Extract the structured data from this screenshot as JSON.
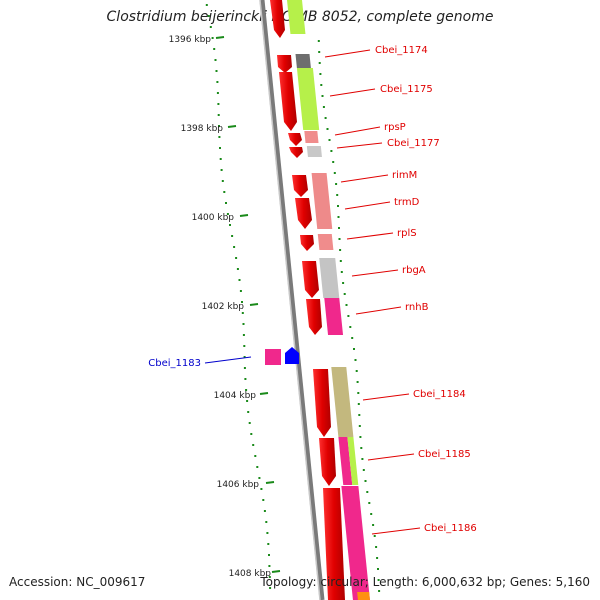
{
  "title": "Clostridium beijerinckii NCIMB 8052, complete genome",
  "footer": {
    "accession": "Accession: NC_009617",
    "topology": "Topology: circular; Length: 6,000,632 bp; Genes: 5,160"
  },
  "ticks": [
    "1396 kbp",
    "1398 kbp",
    "1400 kbp",
    "1402 kbp",
    "1404 kbp",
    "1406 kbp",
    "1408 kbp"
  ],
  "gene_labels": [
    {
      "text": "Cbei_1174",
      "color": "#e00000"
    },
    {
      "text": "Cbei_1175",
      "color": "#e00000"
    },
    {
      "text": "rpsP",
      "color": "#e00000"
    },
    {
      "text": "Cbei_1177",
      "color": "#e00000"
    },
    {
      "text": "rimM",
      "color": "#e00000"
    },
    {
      "text": "trmD",
      "color": "#e00000"
    },
    {
      "text": "rplS",
      "color": "#e00000"
    },
    {
      "text": "rbgA",
      "color": "#e00000"
    },
    {
      "text": "rnhB",
      "color": "#e00000"
    },
    {
      "text": "Cbei_1183",
      "color": "#0000cc"
    },
    {
      "text": "Cbei_1184",
      "color": "#e00000"
    },
    {
      "text": "Cbei_1185",
      "color": "#e00000"
    },
    {
      "text": "Cbei_1186",
      "color": "#e00000"
    }
  ],
  "colors": {
    "backbone": "#8c8c8c",
    "gc_dots": "#1a8a1a",
    "forward_strand": "#ff0000",
    "reverse_strand": "#0000ff"
  }
}
